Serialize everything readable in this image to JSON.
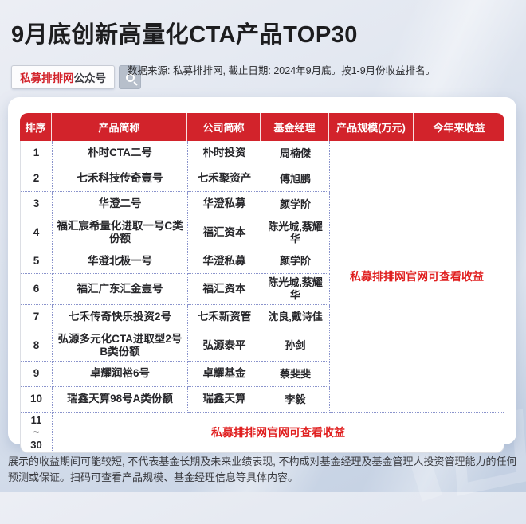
{
  "title": "9月底创新高量化CTA产品TOP30",
  "badge": {
    "brand": "私募排排网",
    "suffix": "公众号"
  },
  "source_note": "数据来源: 私募排排网, 截止日期: 2024年9月底。按1-9月份收益排名。",
  "table": {
    "columns": [
      "排序",
      "产品简称",
      "公司简称",
      "基金经理",
      "产品规模(万元)",
      "今年来收益"
    ],
    "rows": [
      {
        "rank": "1",
        "product": "朴时CTA二号",
        "company": "朴时投资",
        "manager": "周楠傑"
      },
      {
        "rank": "2",
        "product": "七禾科技传奇壹号",
        "company": "七禾聚资产",
        "manager": "傅旭鹏"
      },
      {
        "rank": "3",
        "product": "华澄二号",
        "company": "华澄私募",
        "manager": "颜学阶"
      },
      {
        "rank": "4",
        "product": "福汇宸希量化进取一号C类份额",
        "company": "福汇资本",
        "manager": "陈光城,蔡耀华"
      },
      {
        "rank": "5",
        "product": "华澄北极一号",
        "company": "华澄私募",
        "manager": "颜学阶"
      },
      {
        "rank": "6",
        "product": "福汇广东汇金壹号",
        "company": "福汇资本",
        "manager": "陈光城,蔡耀华"
      },
      {
        "rank": "7",
        "product": "七禾传奇快乐投资2号",
        "company": "七禾新资管",
        "manager": "沈良,戴诗佳"
      },
      {
        "rank": "8",
        "product": "弘源多元化CTA进取型2号B类份额",
        "company": "弘源泰平",
        "manager": "孙剑"
      },
      {
        "rank": "9",
        "product": "卓耀润裕6号",
        "company": "卓耀基金",
        "manager": "蔡斐斐"
      },
      {
        "rank": "10",
        "product": "瑞鑫天算98号A类份额",
        "company": "瑞鑫天算",
        "manager": "李毅"
      }
    ],
    "merged_note": "私募排排网官网可查看收益",
    "tail_row": {
      "rank_line1": "11",
      "rank_line2": "~",
      "rank_line3": "30",
      "note": "私募排排网官网可查看收益"
    }
  },
  "footer_note": "展示的收益期间可能较短, 不代表基金长期及未来业绩表现, 不构成对基金经理及基金管理人投资管理能力的任何预测或保证。扫码可查看产品规模、基金经理信息等具体内容。",
  "colors": {
    "header_red": "#d2232b",
    "brand_red": "#d2232b",
    "note_red": "#e01f1f",
    "dotted_border": "#8a93cc",
    "search_button_gray": "#b7bfcb",
    "background_top": "#eceef4",
    "background_bottom": "#c2cfe2"
  }
}
